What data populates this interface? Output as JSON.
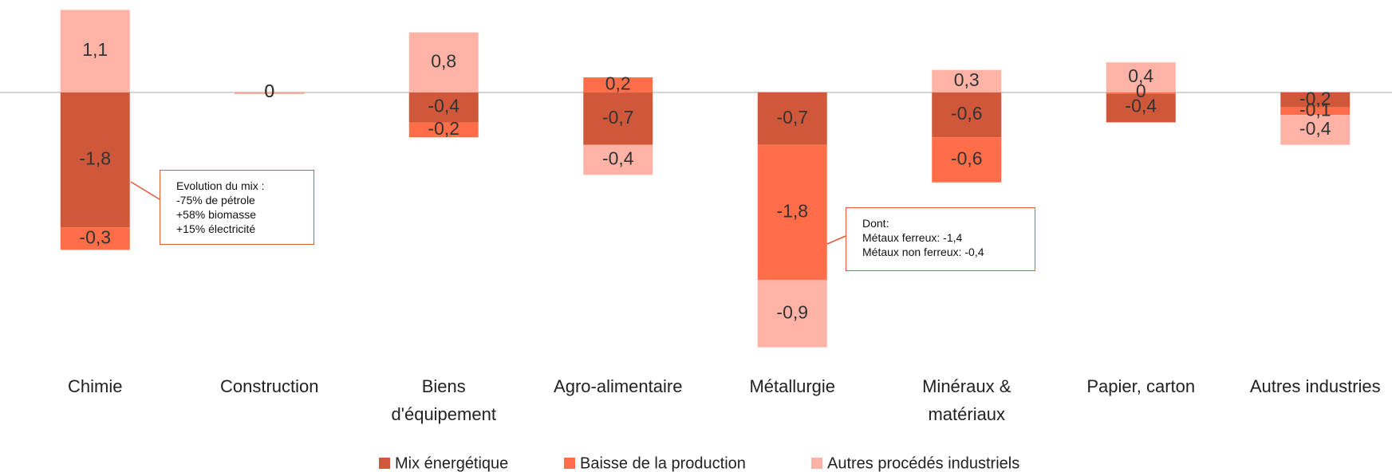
{
  "chart_data": {
    "type": "bar",
    "stacked": true,
    "categories": [
      "Chimie",
      "Construction",
      "Biens\nd'équipement",
      "Agro-alimentaire",
      "Métallurgie",
      "Minéraux &\nmatériaux",
      "Papier, carton",
      "Autres industries"
    ],
    "series": [
      {
        "name": "Mix énergétique",
        "color": "#d0583a",
        "values": [
          -1.8,
          0,
          -0.4,
          -0.7,
          -0.7,
          -0.6,
          -0.4,
          -0.2
        ],
        "value_labels": [
          "-1,8",
          "0",
          "-0,4",
          "-0,7",
          "-0,7",
          "-0,6",
          "-0,4",
          "-0,2"
        ]
      },
      {
        "name": "Baisse de la production",
        "color": "#ff6e48",
        "values": [
          -0.3,
          0,
          -0.2,
          0.2,
          -1.8,
          -0.6,
          0,
          -0.1
        ],
        "value_labels": [
          "-0,3",
          "0",
          "-0,2",
          "0,2",
          "-1,8",
          "-0,6",
          "0",
          "-0,1"
        ]
      },
      {
        "name": "Autres procédés industriels",
        "color": "#ffb3a7",
        "values": [
          1.1,
          0,
          0.8,
          -0.4,
          -0.9,
          0.3,
          0.4,
          -0.4
        ],
        "value_labels": [
          "1,1",
          "0",
          "0,8",
          "-0,4",
          "-0,9",
          "0,3",
          "0,4",
          "-0,4"
        ]
      }
    ],
    "ylim": [
      -3.5,
      1.2
    ],
    "annotations": [
      {
        "text": "Evolution du mix :\n-75% de pétrole\n+58% biomasse\n+15% électricité"
      },
      {
        "text": "Dont:\nMétaux ferreux: -1,4\nMétaux non ferreux: -0,4"
      }
    ],
    "legend": "bottom"
  }
}
